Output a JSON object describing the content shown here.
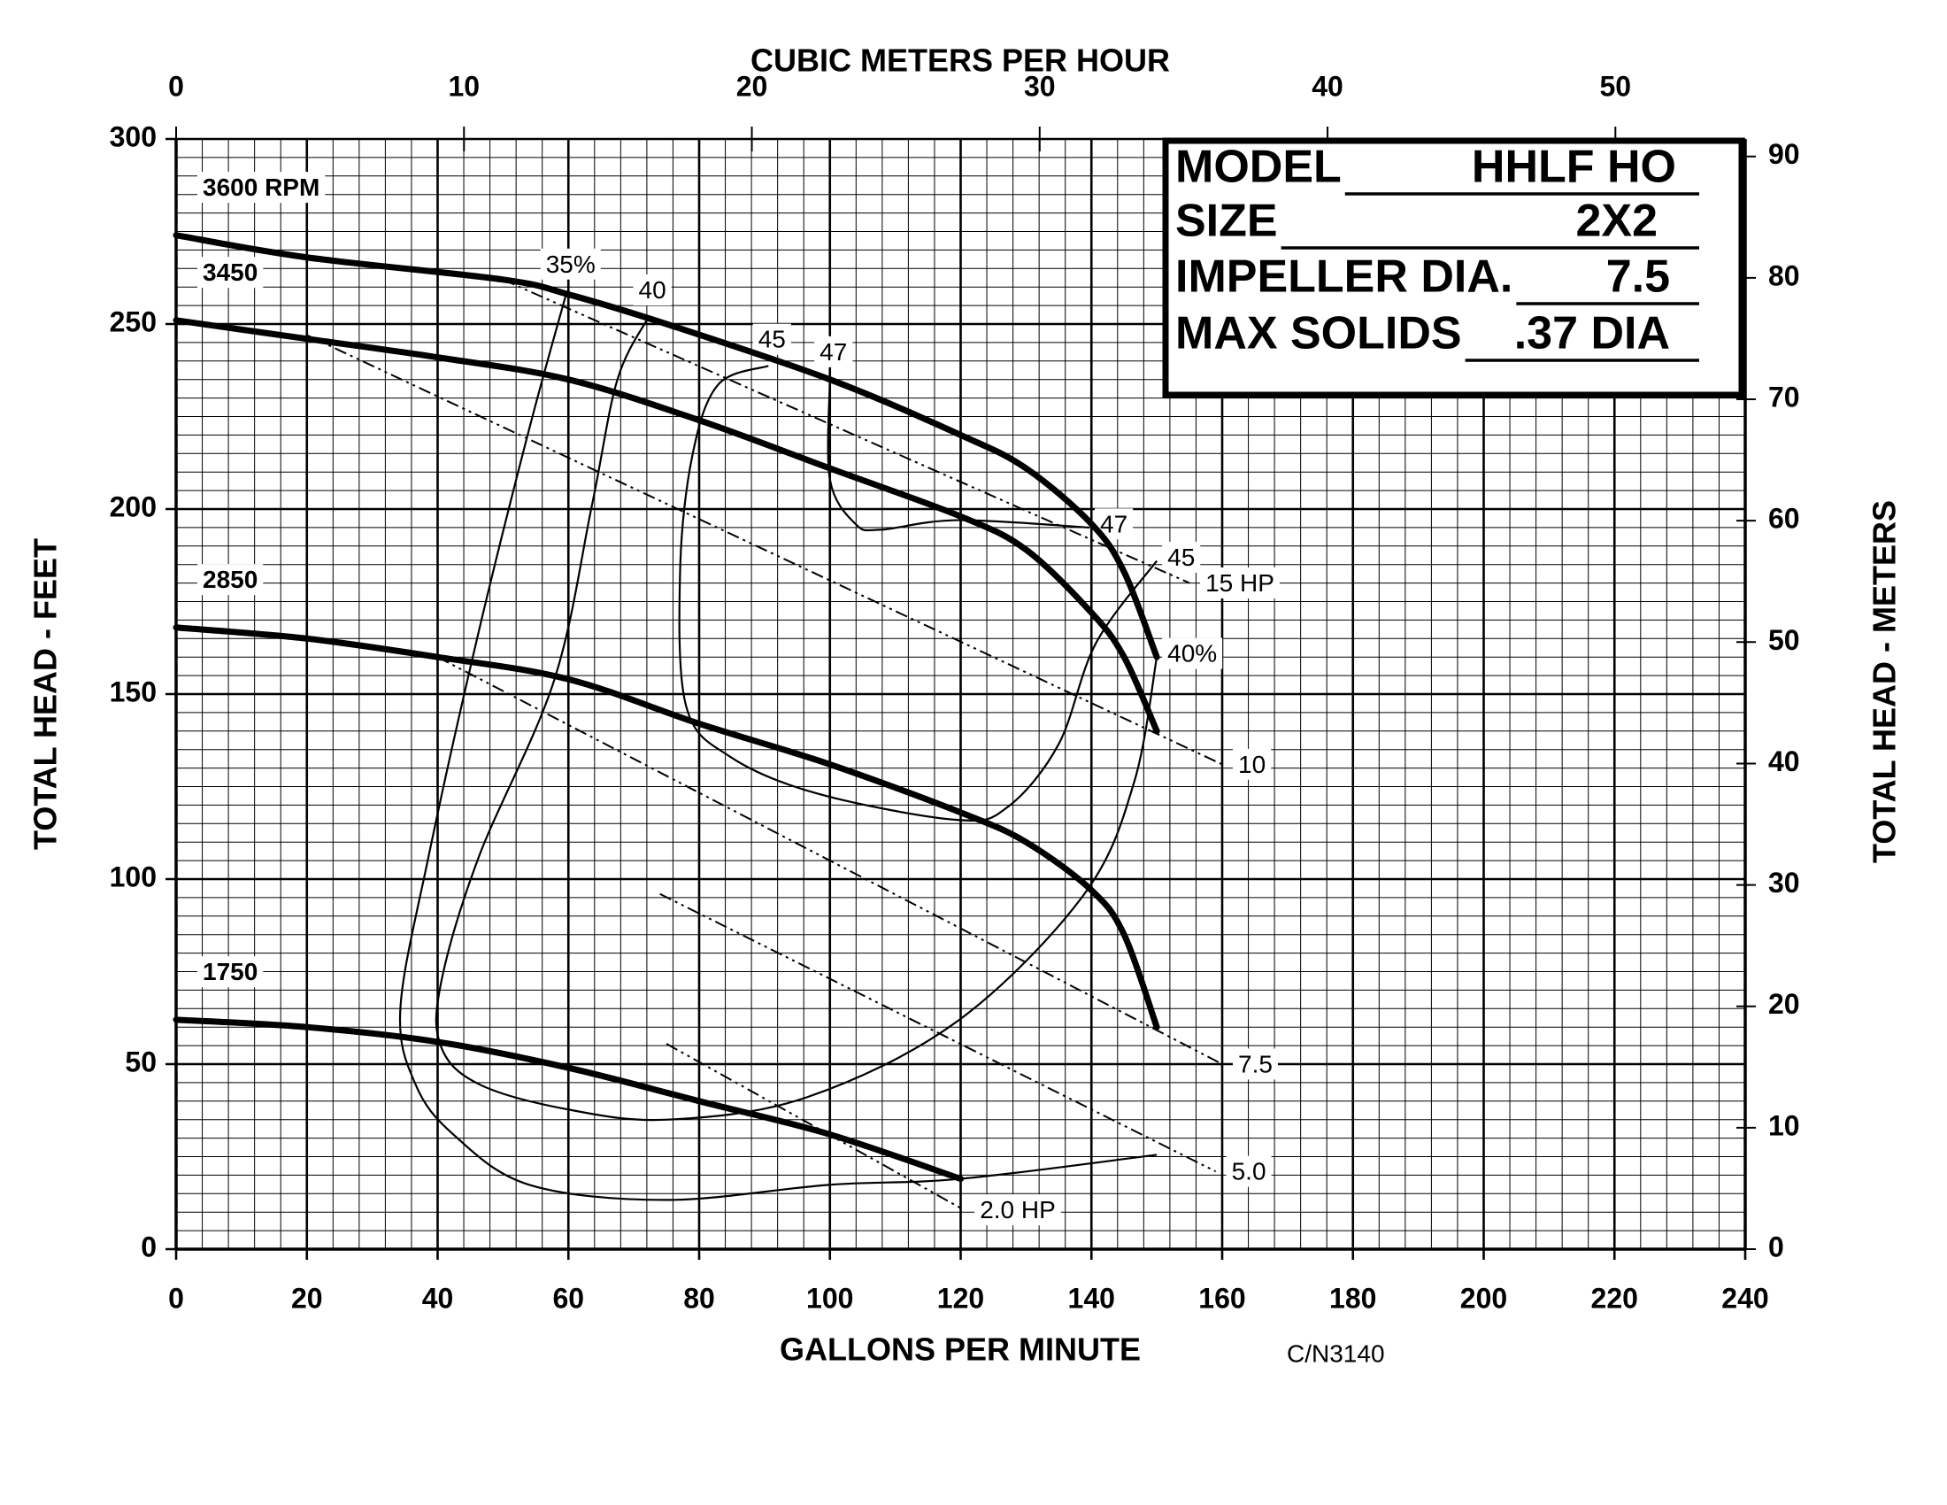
{
  "chart_data": {
    "type": "line",
    "xlabel": "GALLONS PER MINUTE",
    "ylabel": "TOTAL HEAD - FEET",
    "x2label": "CUBIC METERS PER HOUR",
    "y2label": "TOTAL HEAD - METERS",
    "note": "C/N3140",
    "xlim": [
      0,
      240
    ],
    "xticks": [
      0,
      20,
      40,
      60,
      80,
      100,
      120,
      140,
      160,
      180,
      200,
      220,
      240
    ],
    "ylim": [
      0,
      300
    ],
    "yticks": [
      0,
      50,
      100,
      150,
      200,
      250,
      300
    ],
    "x2lim": [
      0,
      54.51
    ],
    "x2ticks": [
      0,
      10,
      20,
      30,
      40,
      50
    ],
    "y2lim": [
      0,
      91.44
    ],
    "y2ticks": [
      0,
      10,
      20,
      30,
      40,
      50,
      60,
      70,
      80,
      90
    ],
    "xminor": 4,
    "yminor": 5,
    "grid": true,
    "color": "#000000",
    "head_curves": [
      {
        "name": "3600 RPM",
        "x": [
          0,
          20,
          50,
          60,
          75,
          100,
          120,
          130,
          140,
          145,
          150
        ],
        "y": [
          274,
          268,
          262,
          258,
          250,
          235,
          220,
          211,
          196,
          183,
          160
        ]
      },
      {
        "name": "3450",
        "x": [
          0,
          20,
          40,
          60,
          80,
          100,
          120,
          130,
          140,
          145,
          150
        ],
        "y": [
          251,
          246,
          241,
          235,
          224,
          211,
          198,
          189,
          172,
          160,
          140
        ]
      },
      {
        "name": "2850",
        "x": [
          0,
          20,
          40,
          60,
          80,
          100,
          120,
          130,
          140,
          145,
          150
        ],
        "y": [
          168,
          165,
          160,
          154,
          142,
          131,
          118,
          110,
          97,
          85,
          60
        ]
      },
      {
        "name": "1750",
        "x": [
          0,
          20,
          40,
          60,
          80,
          100,
          120
        ],
        "y": [
          62,
          60,
          56,
          49,
          40,
          31,
          19
        ]
      }
    ],
    "efficiency_curves": [
      {
        "labels": [
          "35%"
        ],
        "x": [
          59.8,
          54,
          46.3,
          38.6,
          34.3,
          36.6,
          42.4,
          54,
          75,
          100,
          120,
          150
        ],
        "y": [
          259,
          221.6,
          167,
          106,
          65,
          44.6,
          31,
          17.4,
          13.3,
          17.4,
          19,
          25.5
        ]
      },
      {
        "labels": [
          "40",
          "40%"
        ],
        "x": [
          72.3,
          67.5,
          63.6,
          57.8,
          46.3,
          40.5,
          40.5,
          46.3,
          59.8,
          75.2,
          96.4,
          119.5,
          138.8,
          146.5,
          150
        ],
        "y": [
          252,
          235,
          201,
          153.6,
          106,
          71.8,
          54.8,
          44.6,
          37.8,
          35,
          41,
          61.6,
          95.7,
          126,
          160
        ]
      },
      {
        "labels": [
          "45",
          "45"
        ],
        "x": [
          90.6,
          82.9,
          79,
          77.1,
          78,
          84.8,
          98.3,
          119.5,
          127.2,
          135,
          140.7,
          150
        ],
        "y": [
          238.7,
          233.6,
          214.8,
          184,
          146.8,
          133,
          123,
          116,
          119.5,
          136.5,
          163.8,
          186
        ]
      },
      {
        "labels": [
          "47",
          "47"
        ],
        "x": [
          100,
          100,
          103.9,
          107.7,
          119.5,
          139.7
        ],
        "y": [
          235.3,
          208,
          196,
          194.4,
          197,
          195
        ]
      }
    ],
    "power_lines": [
      {
        "name": "15 HP",
        "x": [
          50,
          155
        ],
        "y": [
          262,
          180
        ]
      },
      {
        "name": "10",
        "x": [
          20,
          160
        ],
        "y": [
          247,
          131
        ]
      },
      {
        "name": "7.5",
        "x": [
          40,
          160
        ],
        "y": [
          160,
          50
        ]
      },
      {
        "name": "5.0",
        "x": [
          74,
          159
        ],
        "y": [
          96,
          21
        ]
      },
      {
        "name": "2.0 HP",
        "x": [
          75,
          120.5
        ],
        "y": [
          55.5,
          10.6
        ]
      }
    ],
    "model_box": {
      "rows": [
        [
          "MODEL",
          "HHLF HO"
        ],
        [
          "SIZE",
          "2X2"
        ],
        [
          "IMPELLER DIA.",
          "7.5"
        ],
        [
          "MAX SOLIDS",
          ".37 DIA"
        ]
      ]
    }
  }
}
